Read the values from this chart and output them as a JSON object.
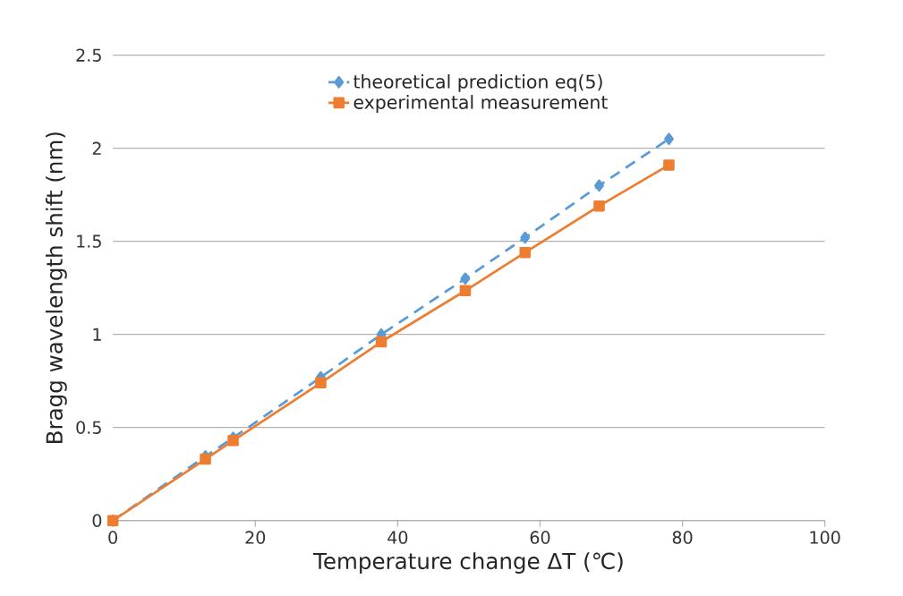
{
  "chart_data": {
    "type": "line",
    "xlabel": "Temperature change ΔT (℃)",
    "ylabel": "Bragg wavelength shift (nm)",
    "x": [
      0,
      13.0,
      16.9,
      29.2,
      37.7,
      49.5,
      57.9,
      68.3,
      78.1
    ],
    "series": [
      {
        "name": "theoretical prediction eq(5)",
        "color": "#5b9bd5",
        "marker": "diamond",
        "line_style": "dashed",
        "values": [
          0,
          0.345,
          0.445,
          0.77,
          1.0,
          1.3,
          1.52,
          1.8,
          2.05
        ]
      },
      {
        "name": "experimental measurement",
        "color": "#ed7d31",
        "marker": "square",
        "line_style": "solid",
        "values": [
          0,
          0.33,
          0.43,
          0.74,
          0.96,
          1.235,
          1.44,
          1.69,
          1.91
        ]
      }
    ],
    "xlim": [
      0,
      100
    ],
    "xticks": [
      0,
      20,
      40,
      60,
      80,
      100
    ],
    "ylim": [
      0,
      2.5
    ],
    "yticks": [
      0,
      0.5,
      1,
      1.5,
      2,
      2.5
    ],
    "grid": "y",
    "legend": "top"
  }
}
